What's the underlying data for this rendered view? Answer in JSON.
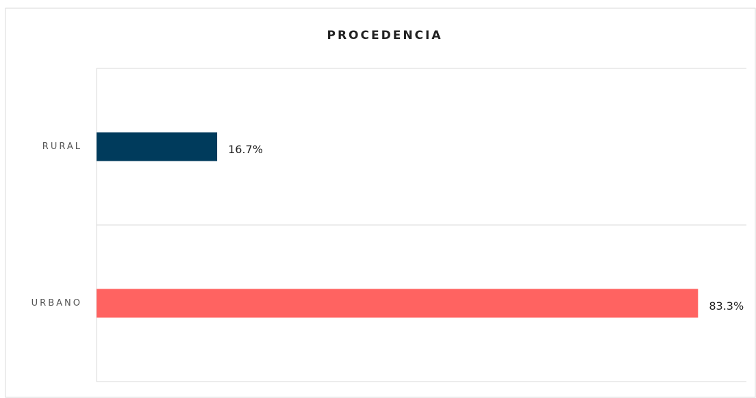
{
  "chart_data": {
    "type": "bar",
    "orientation": "horizontal",
    "title": "PROCEDENCIA",
    "categories": [
      "RURAL",
      "URBANO"
    ],
    "values": [
      16.7,
      83.3
    ],
    "value_labels": [
      "16.7%",
      "83.3%"
    ],
    "colors": [
      "#003b5c",
      "#ff6361"
    ],
    "xlim": [
      0,
      90
    ],
    "grid": true
  }
}
